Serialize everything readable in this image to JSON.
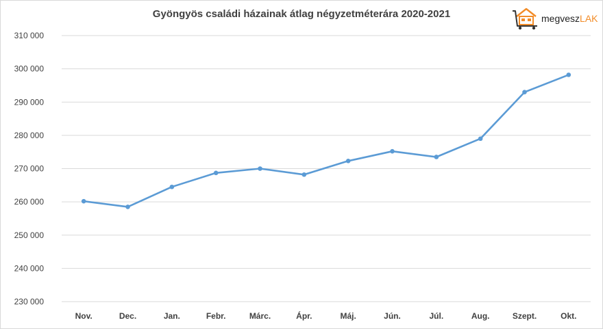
{
  "chart_data": {
    "type": "line",
    "title": "Gyöngyös családi házainak átlag négyzetméterára 2020-2021",
    "xlabel": "",
    "ylabel": "",
    "categories": [
      "Nov.",
      "Dec.",
      "Jan.",
      "Febr.",
      "Márc.",
      "Ápr.",
      "Máj.",
      "Jún.",
      "Júl.",
      "Aug.",
      "Szept.",
      "Okt."
    ],
    "series": [
      {
        "values": [
          260200,
          258500,
          264500,
          268700,
          270000,
          268200,
          272300,
          275200,
          273500,
          279000,
          293000,
          298200
        ],
        "color": "#5b9bd5"
      }
    ],
    "ylim": [
      230000,
      310000
    ],
    "yticks": [
      230000,
      240000,
      250000,
      260000,
      270000,
      280000,
      290000,
      300000,
      310000
    ],
    "ytick_labels": [
      "230 000",
      "240 000",
      "250 000",
      "260 000",
      "270 000",
      "280 000",
      "290 000",
      "300 000",
      "310 000"
    ],
    "grid": true,
    "legend": "none"
  },
  "logo": {
    "text_main": "megvesz",
    "text_accent": "LAK",
    "icon": "house-cart-icon",
    "accent_color": "#f28c28"
  }
}
